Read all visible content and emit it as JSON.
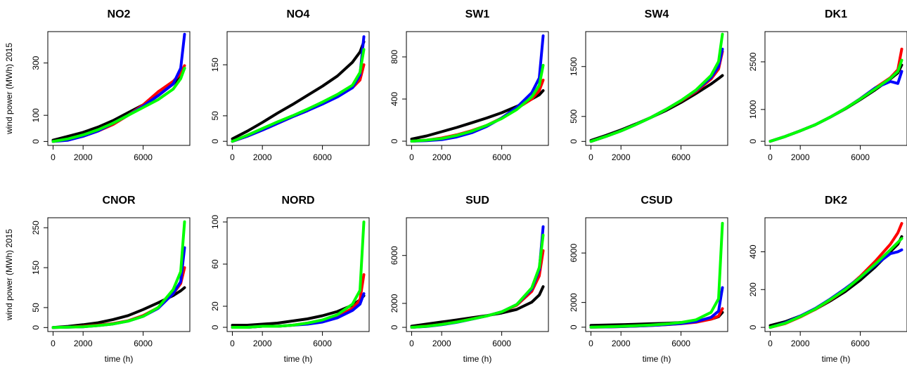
{
  "chart_data": [
    {
      "type": "line",
      "title": "NO2",
      "ylabel": "wind power (MWh) 2015",
      "x": [
        0,
        1000,
        2000,
        3000,
        4000,
        5000,
        6000,
        7000,
        8000,
        8500,
        8760
      ],
      "xlim": [
        -350,
        9110
      ],
      "xticks": [
        0,
        2000,
        6000
      ],
      "ylim": [
        -15,
        420
      ],
      "yticks": [
        0,
        100,
        300
      ],
      "series": [
        {
          "color": "#000000",
          "values": [
            5,
            20,
            35,
            55,
            80,
            110,
            140,
            175,
            220,
            250,
            280
          ]
        },
        {
          "color": "#ff0000",
          "values": [
            0,
            8,
            20,
            40,
            65,
            100,
            140,
            190,
            230,
            260,
            290
          ]
        },
        {
          "color": "#0000ff",
          "values": [
            0,
            5,
            20,
            40,
            70,
            100,
            135,
            175,
            220,
            280,
            410
          ]
        },
        {
          "color": "#00ff00",
          "values": [
            0,
            10,
            25,
            45,
            70,
            100,
            130,
            160,
            200,
            240,
            280
          ]
        }
      ]
    },
    {
      "type": "line",
      "title": "NO4",
      "x": [
        0,
        1000,
        2000,
        3000,
        4000,
        5000,
        6000,
        7000,
        8000,
        8500,
        8760
      ],
      "xlim": [
        -350,
        9110
      ],
      "xticks": [
        0,
        2000,
        6000
      ],
      "ylim": [
        -8,
        215
      ],
      "yticks": [
        0,
        50,
        150
      ],
      "series": [
        {
          "color": "#000000",
          "values": [
            5,
            20,
            37,
            55,
            72,
            90,
            108,
            128,
            155,
            175,
            195
          ]
        },
        {
          "color": "#ff0000",
          "values": [
            0,
            10,
            22,
            35,
            48,
            60,
            75,
            90,
            105,
            120,
            150
          ]
        },
        {
          "color": "#0000ff",
          "values": [
            0,
            10,
            22,
            35,
            48,
            60,
            73,
            87,
            105,
            130,
            205
          ]
        },
        {
          "color": "#00ff00",
          "values": [
            0,
            12,
            25,
            38,
            50,
            63,
            77,
            92,
            110,
            135,
            180
          ]
        }
      ]
    },
    {
      "type": "line",
      "title": "SW1",
      "x": [
        0,
        1000,
        2000,
        3000,
        4000,
        5000,
        6000,
        7000,
        8000,
        8500,
        8760
      ],
      "xlim": [
        -350,
        9110
      ],
      "xticks": [
        0,
        2000,
        6000
      ],
      "ylim": [
        -40,
        1040
      ],
      "yticks": [
        0,
        400,
        800
      ],
      "series": [
        {
          "color": "#000000",
          "values": [
            20,
            50,
            90,
            130,
            175,
            220,
            270,
            330,
            400,
            440,
            480
          ]
        },
        {
          "color": "#ff0000",
          "values": [
            0,
            10,
            30,
            60,
            100,
            150,
            220,
            310,
            400,
            480,
            580
          ]
        },
        {
          "color": "#0000ff",
          "values": [
            0,
            5,
            15,
            40,
            80,
            140,
            220,
            320,
            460,
            600,
            1000
          ]
        },
        {
          "color": "#00ff00",
          "values": [
            0,
            10,
            25,
            55,
            95,
            150,
            215,
            300,
            420,
            530,
            720
          ]
        }
      ]
    },
    {
      "type": "line",
      "title": "SW4",
      "x": [
        0,
        1000,
        2000,
        3000,
        4000,
        5000,
        6000,
        7000,
        8000,
        8500,
        8760
      ],
      "xlim": [
        -350,
        9110
      ],
      "xticks": [
        0,
        2000,
        6000
      ],
      "ylim": [
        -80,
        2200
      ],
      "yticks": [
        0,
        500,
        1500
      ],
      "series": [
        {
          "color": "#000000",
          "values": [
            20,
            120,
            230,
            350,
            480,
            620,
            780,
            960,
            1150,
            1260,
            1320
          ]
        },
        {
          "color": "#ff0000",
          "values": [
            0,
            100,
            210,
            340,
            480,
            640,
            810,
            1000,
            1250,
            1450,
            1800
          ]
        },
        {
          "color": "#0000ff",
          "values": [
            0,
            100,
            210,
            340,
            480,
            640,
            820,
            1020,
            1280,
            1500,
            1850
          ]
        },
        {
          "color": "#00ff00",
          "values": [
            0,
            100,
            210,
            340,
            480,
            640,
            820,
            1030,
            1320,
            1600,
            2150
          ]
        }
      ]
    },
    {
      "type": "line",
      "title": "DK1",
      "x": [
        0,
        1000,
        2000,
        3000,
        4000,
        5000,
        6000,
        7000,
        8000,
        8500,
        8760
      ],
      "xlim": [
        -350,
        9110
      ],
      "xticks": [
        0,
        2000,
        6000
      ],
      "ylim": [
        -130,
        3450
      ],
      "yticks": [
        0,
        1000,
        2500
      ],
      "series": [
        {
          "color": "#000000",
          "values": [
            0,
            150,
            330,
            520,
            760,
            1020,
            1310,
            1620,
            1960,
            2150,
            2400
          ]
        },
        {
          "color": "#ff0000",
          "values": [
            0,
            150,
            330,
            520,
            760,
            1030,
            1340,
            1680,
            2000,
            2250,
            2900
          ]
        },
        {
          "color": "#0000ff",
          "values": [
            0,
            150,
            330,
            520,
            760,
            1030,
            1340,
            1680,
            1880,
            1820,
            2200
          ]
        },
        {
          "color": "#00ff00",
          "values": [
            0,
            150,
            330,
            520,
            760,
            1030,
            1330,
            1650,
            1980,
            2200,
            2550
          ]
        }
      ]
    },
    {
      "type": "line",
      "title": "CNOR",
      "ylabel": "wind power (MWh) 2015",
      "xlabel": "time (h)",
      "x": [
        0,
        1000,
        2000,
        3000,
        4000,
        5000,
        6000,
        7000,
        8000,
        8500,
        8760
      ],
      "xlim": [
        -350,
        9110
      ],
      "xticks": [
        0,
        2000,
        6000
      ],
      "ylim": [
        -10,
        275
      ],
      "yticks": [
        0,
        50,
        150,
        250
      ],
      "series": [
        {
          "color": "#000000",
          "values": [
            0,
            3,
            7,
            12,
            20,
            30,
            45,
            62,
            80,
            92,
            100
          ]
        },
        {
          "color": "#ff0000",
          "values": [
            0,
            1,
            3,
            6,
            10,
            17,
            30,
            50,
            85,
            110,
            150
          ]
        },
        {
          "color": "#0000ff",
          "values": [
            0,
            1,
            2,
            5,
            9,
            16,
            28,
            48,
            85,
            115,
            200
          ]
        },
        {
          "color": "#00ff00",
          "values": [
            0,
            1,
            2,
            5,
            9,
            16,
            28,
            50,
            95,
            140,
            265
          ]
        }
      ]
    },
    {
      "type": "line",
      "title": "NORD",
      "xlabel": "time (h)",
      "x": [
        0,
        1000,
        2000,
        3000,
        4000,
        5000,
        6000,
        7000,
        8000,
        8500,
        8760
      ],
      "xlim": [
        -350,
        9110
      ],
      "xticks": [
        0,
        2000,
        6000
      ],
      "ylim": [
        -4,
        104
      ],
      "yticks": [
        0,
        20,
        60,
        100
      ],
      "series": [
        {
          "color": "#000000",
          "values": [
            2,
            2,
            3,
            4,
            6,
            8,
            11,
            15,
            21,
            26,
            30
          ]
        },
        {
          "color": "#ff0000",
          "values": [
            0,
            0,
            1,
            1,
            2,
            4,
            6,
            10,
            18,
            26,
            50
          ]
        },
        {
          "color": "#0000ff",
          "values": [
            0,
            0,
            1,
            1,
            2,
            3,
            5,
            9,
            16,
            22,
            32
          ]
        },
        {
          "color": "#00ff00",
          "values": [
            0,
            0,
            1,
            1,
            2,
            4,
            7,
            12,
            22,
            35,
            100
          ]
        }
      ]
    },
    {
      "type": "line",
      "title": "SUD",
      "xlabel": "time (h)",
      "x": [
        0,
        1000,
        2000,
        3000,
        4000,
        5000,
        6000,
        7000,
        8000,
        8500,
        8760
      ],
      "xlim": [
        -350,
        9110
      ],
      "xticks": [
        0,
        2000,
        6000
      ],
      "ylim": [
        -350,
        9150
      ],
      "yticks": [
        0,
        2000,
        6000
      ],
      "series": [
        {
          "color": "#000000",
          "values": [
            100,
            280,
            450,
            620,
            800,
            980,
            1200,
            1500,
            2100,
            2700,
            3400
          ]
        },
        {
          "color": "#ff0000",
          "values": [
            0,
            100,
            250,
            450,
            700,
            950,
            1300,
            1850,
            3000,
            4300,
            6400
          ]
        },
        {
          "color": "#0000ff",
          "values": [
            0,
            80,
            220,
            420,
            680,
            950,
            1300,
            1900,
            3200,
            4800,
            8400
          ]
        },
        {
          "color": "#00ff00",
          "values": [
            0,
            90,
            240,
            440,
            690,
            950,
            1300,
            1900,
            3300,
            5000,
            7700
          ]
        }
      ]
    },
    {
      "type": "line",
      "title": "CSUD",
      "xlabel": "time (h)",
      "x": [
        0,
        1000,
        2000,
        3000,
        4000,
        5000,
        6000,
        7000,
        8000,
        8500,
        8760
      ],
      "xlim": [
        -350,
        9110
      ],
      "xticks": [
        0,
        2000,
        6000
      ],
      "ylim": [
        -350,
        8850
      ],
      "yticks": [
        0,
        2000,
        6000
      ],
      "series": [
        {
          "color": "#000000",
          "values": [
            150,
            170,
            200,
            240,
            280,
            320,
            380,
            470,
            650,
            850,
            1200
          ]
        },
        {
          "color": "#ff0000",
          "values": [
            0,
            20,
            50,
            90,
            140,
            200,
            280,
            400,
            650,
            900,
            1500
          ]
        },
        {
          "color": "#0000ff",
          "values": [
            0,
            20,
            50,
            90,
            140,
            210,
            300,
            450,
            800,
            1300,
            3200
          ]
        },
        {
          "color": "#00ff00",
          "values": [
            0,
            30,
            70,
            120,
            180,
            260,
            380,
            600,
            1200,
            2300,
            8400
          ]
        }
      ]
    },
    {
      "type": "line",
      "title": "DK2",
      "xlabel": "time (h)",
      "x": [
        0,
        1000,
        2000,
        3000,
        4000,
        5000,
        6000,
        7000,
        8000,
        8500,
        8760
      ],
      "xlim": [
        -350,
        9110
      ],
      "xticks": [
        0,
        2000,
        6000
      ],
      "ylim": [
        -22,
        580
      ],
      "yticks": [
        0,
        200,
        400
      ],
      "series": [
        {
          "color": "#000000",
          "values": [
            10,
            30,
            60,
            95,
            140,
            190,
            250,
            320,
            400,
            440,
            480
          ]
        },
        {
          "color": "#ff0000",
          "values": [
            0,
            20,
            55,
            95,
            145,
            200,
            270,
            350,
            440,
            500,
            550
          ]
        },
        {
          "color": "#0000ff",
          "values": [
            0,
            25,
            60,
            100,
            150,
            205,
            265,
            330,
            390,
            400,
            410
          ]
        },
        {
          "color": "#00ff00",
          "values": [
            0,
            22,
            57,
            97,
            147,
            200,
            265,
            335,
            410,
            450,
            470
          ]
        }
      ]
    }
  ]
}
